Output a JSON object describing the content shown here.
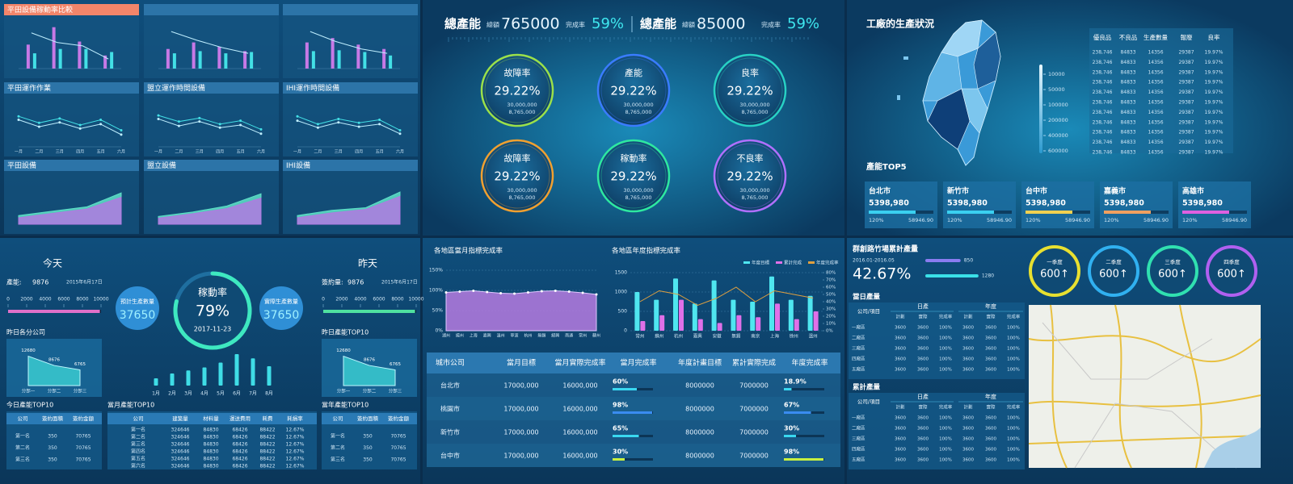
{
  "equipment": {
    "colors": {
      "a": "#c779e6",
      "b": "#43e0e6",
      "line": "#bfefff",
      "area_a": "#5fe0c8",
      "area_b": "#b07ae0"
    },
    "charts": [
      {
        "title": "平田設備稼動率比較",
        "type": "bar-line",
        "highlight": true,
        "ylim": [
          0,
          100
        ],
        "bars_a": [
          55,
          95,
          62,
          30
        ],
        "bars_b": [
          35,
          45,
          45,
          38
        ],
        "line": [
          82,
          60,
          52,
          22
        ]
      },
      {
        "type": "bar-line",
        "ylim": [
          0,
          100
        ],
        "bars_a": [
          45,
          60,
          50,
          40
        ],
        "bars_b": [
          35,
          40,
          35,
          38
        ],
        "line": [
          85,
          65,
          48,
          35
        ]
      },
      {
        "type": "bar-line",
        "ylim": [
          0,
          100
        ],
        "bars_a": [
          60,
          70,
          55,
          45
        ],
        "bars_b": [
          40,
          42,
          38,
          30
        ],
        "line": [
          85,
          62,
          45,
          35
        ]
      },
      {
        "title": "平田運作作業",
        "type": "line",
        "ylim": [
          0,
          100
        ],
        "categories": [
          "一月",
          "二月",
          "三月",
          "四月",
          "五月",
          "六月"
        ],
        "line_a": [
          70,
          55,
          65,
          50,
          62,
          38
        ],
        "line_b": [
          62,
          46,
          56,
          42,
          52,
          28
        ]
      },
      {
        "title": "盟立運作時間設備",
        "type": "line",
        "ylim": [
          0,
          100
        ],
        "categories": [
          "一月",
          "二月",
          "三月",
          "四月",
          "五月",
          "六月"
        ],
        "line_a": [
          72,
          58,
          66,
          52,
          60,
          40
        ],
        "line_b": [
          64,
          48,
          58,
          44,
          50,
          30
        ]
      },
      {
        "title": "IHI運作時間設備",
        "type": "line",
        "ylim": [
          0,
          100
        ],
        "categories": [
          "一月",
          "二月",
          "三月",
          "四月",
          "五月",
          "六月"
        ],
        "line_a": [
          70,
          52,
          64,
          55,
          62,
          38
        ],
        "line_b": [
          60,
          44,
          56,
          46,
          52,
          30
        ]
      },
      {
        "title": "平田設備",
        "type": "area",
        "ylim": [
          0,
          100
        ],
        "area_a": [
          20,
          30,
          40,
          72
        ],
        "area_b": [
          15,
          25,
          35,
          62
        ]
      },
      {
        "title": "盟立設備",
        "type": "area",
        "ylim": [
          0,
          100
        ],
        "area_a": [
          18,
          28,
          42,
          70
        ],
        "area_b": [
          14,
          24,
          36,
          60
        ]
      },
      {
        "title": "IHI設備",
        "type": "area",
        "ylim": [
          0,
          100
        ],
        "area_a": [
          20,
          32,
          38,
          74
        ],
        "area_b": [
          15,
          26,
          34,
          64
        ]
      }
    ]
  },
  "capacity": {
    "header": [
      {
        "label": "總產能",
        "sub": "總額",
        "value": "765000",
        "rate_label": "完成率",
        "rate": "59%"
      },
      {
        "label": "總產能",
        "sub": "總額",
        "value": "85000",
        "rate_label": "完成率",
        "rate": "59%"
      }
    ],
    "gauges": [
      {
        "label": "故障率",
        "value": "29.22%",
        "line1": "30,000,000",
        "line2": "8,765,000",
        "color": "#9be04a"
      },
      {
        "label": "產能",
        "value": "29.22%",
        "line1": "30,000,000",
        "line2": "8,765,000",
        "color": "#3a7cff"
      },
      {
        "label": "良率",
        "value": "29.22%",
        "line1": "30,000,000",
        "line2": "8,765,000",
        "color": "#28d1c4"
      },
      {
        "label": "故障率",
        "value": "29.22%",
        "line1": "30,000,000",
        "line2": "8,765,000",
        "color": "#f0a030"
      },
      {
        "label": "稼動率",
        "value": "29.22%",
        "line1": "30,000,000",
        "line2": "8,765,000",
        "color": "#2ee8a0"
      },
      {
        "label": "不良率",
        "value": "29.22%",
        "line1": "30,000,000",
        "line2": "8,765,000",
        "color": "#b070ff"
      }
    ]
  },
  "factory": {
    "title": "工廠的生產狀況",
    "map_legend": [
      10000,
      50000,
      100000,
      200000,
      400000,
      600000
    ],
    "table": {
      "headers": [
        "優良品",
        "不良品",
        "生產數量",
        "報廢",
        "良率"
      ],
      "rows": [
        [
          "238,746",
          "84833",
          "14356",
          "29387",
          "19.97%"
        ],
        [
          "238,746",
          "84833",
          "14356",
          "29387",
          "19.97%"
        ],
        [
          "238,746",
          "84833",
          "14356",
          "29387",
          "19.97%"
        ],
        [
          "238,746",
          "84833",
          "14356",
          "29387",
          "19.97%"
        ],
        [
          "238,746",
          "84833",
          "14356",
          "29387",
          "19.97%"
        ],
        [
          "238,746",
          "84833",
          "14356",
          "29387",
          "19.97%"
        ],
        [
          "238,746",
          "84833",
          "14356",
          "29387",
          "19.97%"
        ],
        [
          "238,746",
          "84833",
          "14356",
          "29387",
          "19.97%"
        ],
        [
          "238,746",
          "84833",
          "14356",
          "29387",
          "19.97%"
        ],
        [
          "238,746",
          "84833",
          "14356",
          "29387",
          "19.97%"
        ],
        [
          "238,746",
          "84833",
          "14356",
          "29387",
          "19.97%"
        ]
      ]
    },
    "top_title": "產能TOP5",
    "top": [
      {
        "city": "台北市",
        "value": "5398,980",
        "rate": "120%",
        "amount": "58946.90",
        "color": "#3ad0f0"
      },
      {
        "city": "新竹市",
        "value": "5398,980",
        "rate": "120%",
        "amount": "58946.90",
        "color": "#3ad0f0"
      },
      {
        "city": "台中市",
        "value": "5398,980",
        "rate": "120%",
        "amount": "58946.90",
        "color": "#f0d050"
      },
      {
        "city": "嘉義市",
        "value": "5398,980",
        "rate": "120%",
        "amount": "58946.90",
        "color": "#f0a060"
      },
      {
        "city": "高雄市",
        "value": "5398,980",
        "rate": "120%",
        "amount": "58946.90",
        "color": "#e060e0"
      }
    ]
  },
  "daily": {
    "today": "今天",
    "yesterday": "昨天",
    "output": {
      "label": "產能:",
      "value": 9876,
      "date": "2015年6月17日"
    },
    "signed": {
      "label": "簽約量:",
      "value": 9876,
      "date": "2015年6月17日"
    },
    "scale_ticks": [
      0,
      2000,
      4000,
      6000,
      8000,
      10000
    ],
    "planned": {
      "label": "預計生產數量",
      "value": "37650"
    },
    "actual": {
      "label": "實際生產數量",
      "value": "37650"
    },
    "utilization": {
      "label": "稼動率",
      "value": 79,
      "value_label": "79%",
      "date": "2017-11-23"
    },
    "monthly": {
      "categories": [
        "1月",
        "2月",
        "3月",
        "4月",
        "5月",
        "6月",
        "7月",
        "8月"
      ],
      "values": [
        12,
        20,
        25,
        30,
        38,
        52,
        45,
        32
      ],
      "ylim": [
        0,
        60
      ]
    },
    "branch_yesterday": {
      "title": "昨日各分公司",
      "categories": [
        "分部一",
        "分部二",
        "分部三"
      ],
      "values": [
        12680,
        8676,
        6765
      ],
      "ylim": [
        0,
        16000
      ]
    },
    "top_yesterday": {
      "title": "昨日產能TOP10",
      "categories": [
        "分部一",
        "分部二",
        "分部三"
      ],
      "values": [
        12680,
        8676,
        6765
      ],
      "ylim": [
        0,
        16000
      ]
    },
    "top_today": {
      "title": "今日產能TOP10",
      "headers": [
        "公司",
        "簽約面積",
        "簽約金額"
      ],
      "rows": [
        [
          "第一名",
          "350",
          "70765"
        ],
        [
          "第二名",
          "350",
          "70765"
        ],
        [
          "第三名",
          "350",
          "70765"
        ]
      ]
    },
    "top_month": {
      "title": "當月產能TOP10",
      "headers": [
        "公司",
        "建築量",
        "材料量",
        "運送費用",
        "耗費",
        "耗損率"
      ],
      "rows": [
        [
          "第一名",
          "324646",
          "84830",
          "68426",
          "88422",
          "12.67%"
        ],
        [
          "第二名",
          "324646",
          "84830",
          "68426",
          "88422",
          "12.67%"
        ],
        [
          "第三名",
          "324646",
          "84830",
          "68426",
          "88422",
          "12.67%"
        ],
        [
          "第四名",
          "324646",
          "84830",
          "68426",
          "88422",
          "12.67%"
        ],
        [
          "第五名",
          "324646",
          "84830",
          "68426",
          "88422",
          "12.67%"
        ],
        [
          "第六名",
          "324646",
          "84830",
          "68426",
          "88422",
          "12.67%"
        ]
      ]
    },
    "top_year": {
      "title": "當年產能TOP10",
      "headers": [
        "公司",
        "簽約面積",
        "簽約金額"
      ],
      "rows": [
        [
          "第一名",
          "350",
          "70765"
        ],
        [
          "第二名",
          "350",
          "70765"
        ],
        [
          "第三名",
          "350",
          "70765"
        ]
      ]
    }
  },
  "regions": {
    "monthly": {
      "type": "area",
      "title": "各地區當月指標完成率",
      "categories": [
        "湖州",
        "揚州",
        "上海",
        "嘉興",
        "溫州",
        "寧波",
        "杭州",
        "無錫",
        "紹興",
        "南通",
        "常州",
        "蘇州"
      ],
      "values": [
        95,
        97,
        99,
        96,
        93,
        92,
        95,
        98,
        99,
        97,
        94,
        90
      ],
      "color": "#b57be0",
      "ylim": [
        0,
        150
      ],
      "yticks": [
        {
          "value": 0,
          "label": "0%"
        },
        {
          "value": 50,
          "label": "50%"
        },
        {
          "value": 100,
          "label": "100%"
        },
        {
          "value": 150,
          "label": "150%"
        }
      ]
    },
    "annual": {
      "type": "bar",
      "title": "各地區年度指標完成率",
      "categories": [
        "常州",
        "蘇州",
        "杭州",
        "嘉興",
        "安徽",
        "無錫",
        "南京",
        "上海",
        "徐州",
        "溫州"
      ],
      "series": [
        {
          "name": "年度目標",
          "color": "#4fe6f0",
          "values": [
            1000,
            800,
            1350,
            700,
            1300,
            800,
            750,
            1400,
            800,
            900
          ]
        },
        {
          "name": "累計完成",
          "color": "#e070e8",
          "values": [
            250,
            400,
            800,
            300,
            200,
            400,
            350,
            700,
            300,
            500
          ]
        },
        {
          "name": "年度完成率",
          "color": "#e0a040",
          "axis": "y2",
          "values": [
            40,
            55,
            50,
            35,
            45,
            60,
            40,
            55,
            50,
            45
          ]
        }
      ],
      "ylim": [
        0,
        1500
      ],
      "yticks": [
        0,
        500,
        1000,
        1500
      ],
      "y2lim": [
        0,
        80
      ],
      "y2ticks": [
        {
          "value": 0,
          "label": "0%"
        },
        {
          "value": 10,
          "label": "10%"
        },
        {
          "value": 20,
          "label": "20%"
        },
        {
          "value": 30,
          "label": "30%"
        },
        {
          "value": 40,
          "label": "40%"
        },
        {
          "value": 50,
          "label": "50%"
        },
        {
          "value": 60,
          "label": "60%"
        },
        {
          "value": 70,
          "label": "70%"
        },
        {
          "value": 80,
          "label": "80%"
        }
      ]
    },
    "table": {
      "headers": [
        "城市公司",
        "當月目標",
        "當月實際完成率",
        "當月完成率",
        "年度計畫目標",
        "累計實際完成",
        "年度完成率"
      ],
      "rows": [
        {
          "city": "台北市",
          "month_target": "17000,000",
          "month_actual": "16000,000",
          "month_rate": 60,
          "month_rate_label": "60%",
          "year_target": "8000000",
          "year_actual": "7000000",
          "year_rate": 18.9,
          "year_rate_label": "18.9%",
          "color": "#3ad8f0"
        },
        {
          "city": "桃園市",
          "month_target": "17000,000",
          "month_actual": "16000,000",
          "month_rate": 98,
          "month_rate_label": "98%",
          "year_target": "8000000",
          "year_actual": "7000000",
          "year_rate": 67,
          "year_rate_label": "67%",
          "color": "#3a8cf0"
        },
        {
          "city": "新竹市",
          "month_target": "17000,000",
          "month_actual": "16000,000",
          "month_rate": 65,
          "month_rate_label": "65%",
          "year_target": "8000000",
          "year_actual": "7000000",
          "year_rate": 30,
          "year_rate_label": "30%",
          "color": "#3ad8f0"
        },
        {
          "city": "台中市",
          "month_target": "17000,000",
          "month_actual": "16000,000",
          "month_rate": 30,
          "month_rate_label": "30%",
          "year_target": "8000000",
          "year_actual": "7000000",
          "year_rate": 98,
          "year_rate_label": "98%",
          "color": "#c8f040"
        }
      ]
    }
  },
  "plant": {
    "title": "群創路竹場累計產量",
    "period": "2016.01-2016.05",
    "rate": "42.67%",
    "xlim": [
      0,
      1400
    ],
    "bars": [
      {
        "value": 850,
        "color": "#8a7cf0"
      },
      {
        "value": 1280,
        "color": "#3ae0e8"
      }
    ],
    "quarters": [
      {
        "label": "一季度",
        "value": "600↑",
        "color": "#e8e030"
      },
      {
        "label": "二季度",
        "value": "600↑",
        "color": "#30b0f0"
      },
      {
        "label": "三季度",
        "value": "600↑",
        "color": "#30e0b0"
      },
      {
        "label": "四季度",
        "value": "600↑",
        "color": "#b060f0"
      }
    ],
    "daily_title": "當日產量",
    "cumulative_title": "累計產量",
    "table_headers": {
      "corner": "公司/項目",
      "groups": [
        "日產",
        "年度"
      ],
      "sub": [
        "計劃",
        "實際",
        "完成率",
        "計劃",
        "實際",
        "完成率"
      ]
    },
    "daily_rows": [
      [
        "一廠區",
        "3600",
        "3600",
        "100%",
        "3600",
        "3600",
        "100%"
      ],
      [
        "二廠區",
        "3600",
        "3600",
        "100%",
        "3600",
        "3600",
        "100%"
      ],
      [
        "三廠區",
        "3600",
        "3600",
        "100%",
        "3600",
        "3600",
        "100%"
      ],
      [
        "四廠區",
        "3600",
        "3600",
        "100%",
        "3600",
        "3600",
        "100%"
      ],
      [
        "五廠區",
        "3600",
        "3600",
        "100%",
        "3600",
        "3600",
        "100%"
      ]
    ],
    "cumulative_rows": [
      [
        "一廠區",
        "3600",
        "3600",
        "100%",
        "3600",
        "3600",
        "100%"
      ],
      [
        "二廠區",
        "3600",
        "3600",
        "100%",
        "3600",
        "3600",
        "100%"
      ],
      [
        "三廠區",
        "3600",
        "3600",
        "100%",
        "3600",
        "3600",
        "100%"
      ],
      [
        "四廠區",
        "3600",
        "3600",
        "100%",
        "3600",
        "3600",
        "100%"
      ],
      [
        "五廠區",
        "3600",
        "3600",
        "100%",
        "3600",
        "3600",
        "100%"
      ]
    ]
  }
}
